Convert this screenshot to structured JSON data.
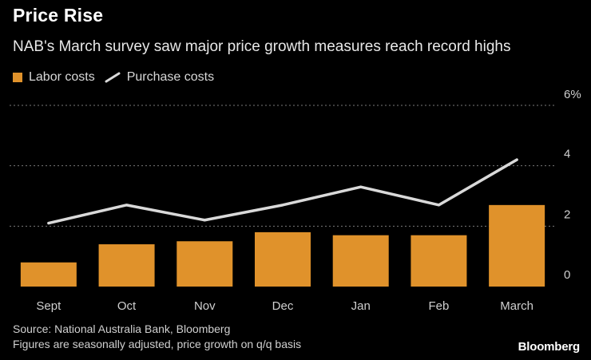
{
  "title": "Price Rise",
  "subtitle": "NAB's March survey saw major price growth measures reach record highs",
  "legend": {
    "labor_label": "Labor costs",
    "purchase_label": "Purchase costs"
  },
  "colors": {
    "bar": "#e0922b",
    "line": "#d9d9d9",
    "grid": "#7a7a7a",
    "background": "#000000"
  },
  "footer": {
    "source": "Source: National Australia Bank, Bloomberg",
    "note": "Figures are seasonally adjusted, price growth on q/q basis",
    "brand": "Bloomberg"
  },
  "chart_data": {
    "type": "bar",
    "title": "Price Rise",
    "subtitle": "NAB's March survey saw major price growth measures reach record highs",
    "categories": [
      "Sept",
      "Oct",
      "Nov",
      "Dec",
      "Jan",
      "Feb",
      "March"
    ],
    "series": [
      {
        "name": "Labor costs",
        "type": "bar",
        "values": [
          0.8,
          1.4,
          1.5,
          1.8,
          1.7,
          1.7,
          2.7
        ]
      },
      {
        "name": "Purchase costs",
        "type": "line",
        "values": [
          2.1,
          2.7,
          2.2,
          2.7,
          3.3,
          2.7,
          4.2
        ]
      }
    ],
    "ylim": [
      0,
      6
    ],
    "yticks": [
      0,
      2,
      4,
      6
    ],
    "ytick_labels": [
      "0",
      "2",
      "4",
      "6%"
    ],
    "y_axis_side": "right",
    "grid": true,
    "legend_position": "top-left",
    "xlabel": "",
    "ylabel": ""
  }
}
